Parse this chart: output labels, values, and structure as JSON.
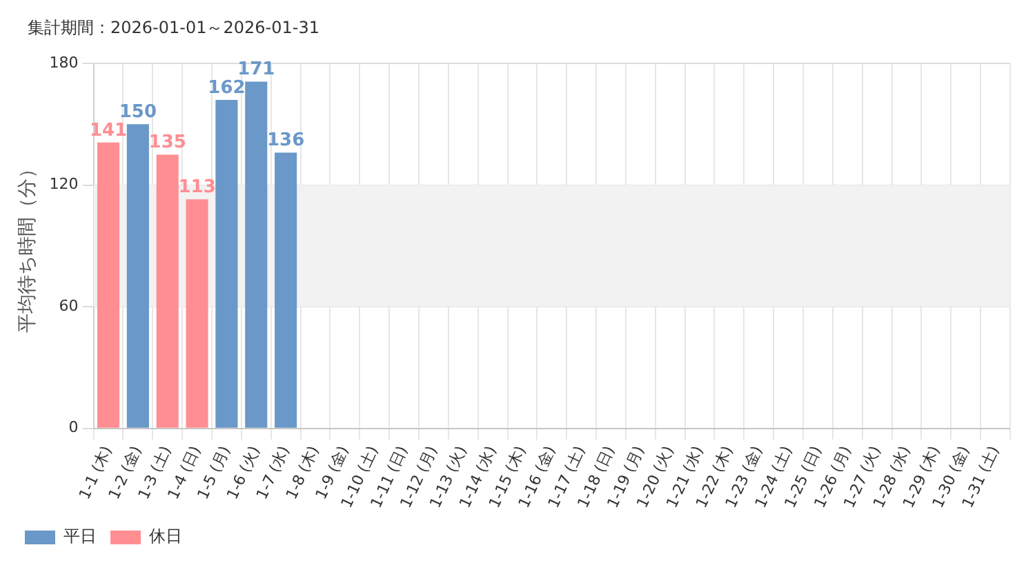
{
  "chart_data": {
    "type": "bar",
    "subtitle": "集計期間：2026-01-01～2026-01-31",
    "ylabel": "平均待ち時間（分）",
    "categories": [
      "1-1 (木)",
      "1-2 (金)",
      "1-3 (土)",
      "1-4 (日)",
      "1-5 (月)",
      "1-6 (火)",
      "1-7 (水)",
      "1-8 (木)",
      "1-9 (金)",
      "1-10 (土)",
      "1-11 (日)",
      "1-12 (月)",
      "1-13 (火)",
      "1-14 (水)",
      "1-15 (木)",
      "1-16 (金)",
      "1-17 (土)",
      "1-18 (日)",
      "1-19 (月)",
      "1-20 (火)",
      "1-21 (水)",
      "1-22 (木)",
      "1-23 (金)",
      "1-24 (土)",
      "1-25 (日)",
      "1-26 (月)",
      "1-27 (火)",
      "1-28 (水)",
      "1-29 (木)",
      "1-30 (金)",
      "1-31 (土)"
    ],
    "series": [
      {
        "name": "平日",
        "color": "#6a98c8",
        "values": [
          null,
          150,
          null,
          null,
          162,
          171,
          136,
          null,
          null,
          null,
          null,
          null,
          null,
          null,
          null,
          null,
          null,
          null,
          null,
          null,
          null,
          null,
          null,
          null,
          null,
          null,
          null,
          null,
          null,
          null,
          null
        ]
      },
      {
        "name": "休日",
        "color": "#ff8e93",
        "values": [
          141,
          null,
          135,
          113,
          null,
          null,
          null,
          null,
          null,
          null,
          null,
          null,
          null,
          null,
          null,
          null,
          null,
          null,
          null,
          null,
          null,
          null,
          null,
          null,
          null,
          null,
          null,
          null,
          null,
          null,
          null
        ]
      }
    ],
    "ylim": [
      0,
      180
    ],
    "yticks": [
      0,
      60,
      120,
      180
    ],
    "bands": [
      {
        "axis": "y",
        "from": 60,
        "to": 120,
        "color": "#f2f2f2"
      }
    ],
    "grid": true,
    "legend": "bottom left",
    "data_labels": true
  }
}
